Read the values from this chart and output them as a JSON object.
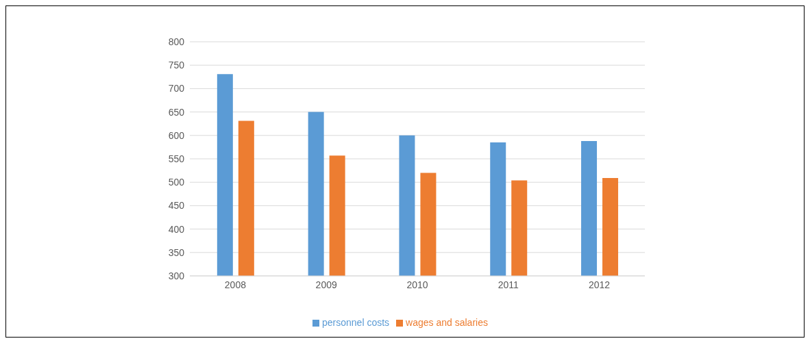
{
  "chart_data": {
    "type": "bar",
    "categories": [
      "2008",
      "2009",
      "2010",
      "2011",
      "2012"
    ],
    "series": [
      {
        "name": "personnel costs",
        "color": "#5b9bd5",
        "values": [
          731,
          650,
          600,
          585,
          588
        ]
      },
      {
        "name": "wages and salaries",
        "color": "#ed7d31",
        "values": [
          631,
          557,
          520,
          504,
          509
        ]
      }
    ],
    "ylim": [
      300,
      800
    ],
    "yticks": [
      300,
      350,
      400,
      450,
      500,
      550,
      600,
      650,
      700,
      750,
      800
    ],
    "grid": "y",
    "legend": "bottom"
  }
}
